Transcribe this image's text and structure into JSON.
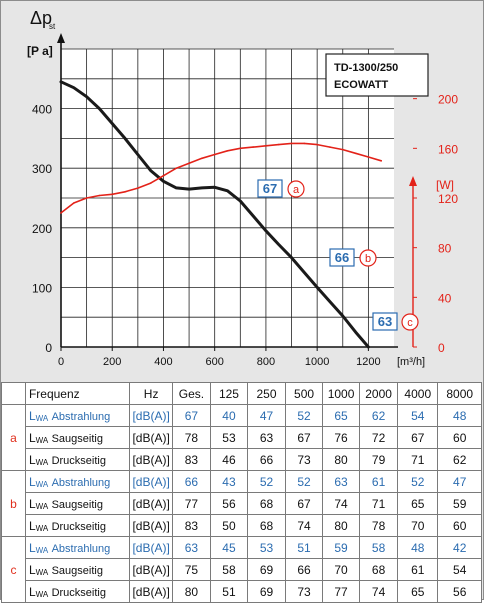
{
  "chart_data": {
    "type": "line",
    "y_title_symbol": "Δp",
    "y_title_subscript": "st",
    "y_unit_left": "[P a]",
    "y_unit_right": "[W]",
    "x_unit": "[m³/h]",
    "model_line1": "TD-1300/250",
    "model_line2": "ECOWATT",
    "xlim": [
      0,
      1300
    ],
    "ylim_left": [
      0,
      500
    ],
    "ylim_right": [
      0,
      240
    ],
    "x_ticks": [
      "0",
      "200",
      "400",
      "600",
      "800",
      "1000",
      "1200"
    ],
    "y_ticks_left": [
      "0",
      "100",
      "200",
      "300",
      "400"
    ],
    "y_ticks_right": [
      "0",
      "40",
      "80",
      "120",
      "160",
      "200"
    ],
    "series": [
      {
        "axis": "left",
        "color": "#1a1a1a",
        "x": [
          0,
          50,
          100,
          150,
          200,
          250,
          300,
          350,
          400,
          450,
          500,
          550,
          600,
          650,
          700,
          750,
          800,
          850,
          900,
          950,
          1000,
          1050,
          1100,
          1150,
          1200
        ],
        "y": [
          445,
          435,
          420,
          400,
          375,
          350,
          323,
          296,
          278,
          267,
          265,
          267,
          268,
          262,
          245,
          220,
          195,
          172,
          150,
          125,
          100,
          76,
          52,
          25,
          0
        ]
      },
      {
        "axis": "right",
        "color": "#e32219",
        "x": [
          0,
          50,
          100,
          150,
          200,
          250,
          300,
          350,
          400,
          450,
          500,
          550,
          600,
          650,
          700,
          750,
          800,
          850,
          900,
          950,
          1000,
          1050,
          1100,
          1150,
          1200,
          1250
        ],
        "y": [
          108,
          116,
          120,
          122,
          123,
          125,
          128,
          132,
          138,
          144,
          148,
          152,
          155,
          158,
          160,
          161,
          162,
          163,
          164,
          164,
          163,
          161,
          159,
          156,
          153,
          150
        ]
      }
    ],
    "annotations": [
      {
        "value": "63",
        "letter": "c"
      },
      {
        "value": "66",
        "letter": "b"
      },
      {
        "value": "67",
        "letter": "a"
      }
    ]
  },
  "table": {
    "header": [
      "Frequenz",
      "Hz",
      "Ges.",
      "125",
      "250",
      "500",
      "1000",
      "2000",
      "4000",
      "8000"
    ],
    "label_prefix": "L",
    "label_sub": "WA",
    "groups": [
      {
        "letter": "a",
        "rows": [
          {
            "name": "Abstrahlung",
            "unit": "[dB(A)]",
            "values": [
              "67",
              "40",
              "47",
              "52",
              "65",
              "62",
              "54",
              "48"
            ]
          },
          {
            "name": "Saugseitig",
            "unit": "[dB(A)]",
            "values": [
              "78",
              "53",
              "63",
              "67",
              "76",
              "72",
              "67",
              "60"
            ]
          },
          {
            "name": "Druckseitig",
            "unit": "[dB(A)]",
            "values": [
              "83",
              "46",
              "66",
              "73",
              "80",
              "79",
              "71",
              "62"
            ]
          }
        ]
      },
      {
        "letter": "b",
        "rows": [
          {
            "name": "Abstrahlung",
            "unit": "[dB(A)]",
            "values": [
              "66",
              "43",
              "52",
              "52",
              "63",
              "61",
              "52",
              "47"
            ]
          },
          {
            "name": "Saugseitig",
            "unit": "[dB(A)]",
            "values": [
              "77",
              "56",
              "68",
              "67",
              "74",
              "71",
              "65",
              "59"
            ]
          },
          {
            "name": "Druckseitig",
            "unit": "[dB(A)]",
            "values": [
              "83",
              "50",
              "68",
              "74",
              "80",
              "78",
              "70",
              "60"
            ]
          }
        ]
      },
      {
        "letter": "c",
        "rows": [
          {
            "name": "Abstrahlung",
            "unit": "[dB(A)]",
            "values": [
              "63",
              "45",
              "53",
              "51",
              "59",
              "58",
              "48",
              "42"
            ]
          },
          {
            "name": "Saugseitig",
            "unit": "[dB(A)]",
            "values": [
              "75",
              "58",
              "69",
              "66",
              "70",
              "68",
              "61",
              "54"
            ]
          },
          {
            "name": "Druckseitig",
            "unit": "[dB(A)]",
            "values": [
              "80",
              "51",
              "69",
              "73",
              "77",
              "74",
              "65",
              "56"
            ]
          }
        ]
      }
    ]
  }
}
